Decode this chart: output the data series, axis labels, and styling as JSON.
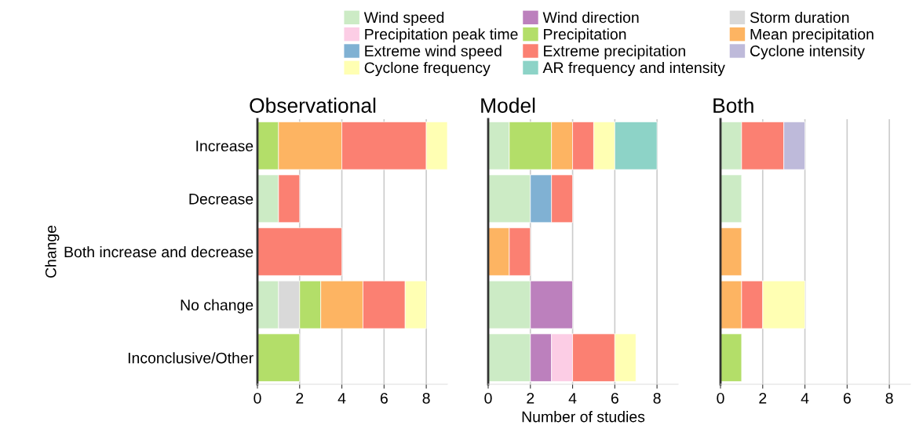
{
  "chart_data": [
    {
      "type": "bar",
      "title": "Observational",
      "ylabel": "Change",
      "orientation": "horizontal",
      "stacked": true,
      "grid": "x",
      "legend": "top",
      "xlim": [
        0,
        9
      ],
      "xticks": [
        0,
        2,
        4,
        6,
        8
      ],
      "categories": [
        "Increase",
        "Decrease",
        "Both increase and decrease",
        "No change",
        "Inconclusive/Other"
      ],
      "series": [
        {
          "name": "Wind speed",
          "color": "#ccebc5",
          "values": [
            null,
            1,
            null,
            1,
            null
          ]
        },
        {
          "name": "Wind direction",
          "color": "#bc80bd",
          "values": [
            null,
            null,
            null,
            null,
            null
          ]
        },
        {
          "name": "Storm duration",
          "color": "#d9d9d9",
          "values": [
            null,
            null,
            null,
            1,
            null
          ]
        },
        {
          "name": "Precipitation peak time",
          "color": "#fccde5",
          "values": [
            null,
            null,
            null,
            null,
            null
          ]
        },
        {
          "name": "Precipitation",
          "color": "#b3de69",
          "values": [
            1,
            null,
            null,
            1,
            2
          ]
        },
        {
          "name": "Mean precipitation",
          "color": "#fdb462",
          "values": [
            3,
            null,
            null,
            2,
            null
          ]
        },
        {
          "name": "Extreme wind speed",
          "color": "#80b1d3",
          "values": [
            null,
            null,
            null,
            null,
            null
          ]
        },
        {
          "name": "Extreme precipitation",
          "color": "#fb8072",
          "values": [
            4,
            1,
            4,
            2,
            null
          ]
        },
        {
          "name": "Cyclone intensity",
          "color": "#bebada",
          "values": [
            null,
            null,
            null,
            null,
            null
          ]
        },
        {
          "name": "Cyclone frequency",
          "color": "#ffffb3",
          "values": [
            1,
            null,
            null,
            1,
            null
          ]
        },
        {
          "name": "AR frequency and intensity",
          "color": "#8dd3c7",
          "values": [
            null,
            null,
            null,
            null,
            null
          ]
        }
      ]
    },
    {
      "type": "bar",
      "title": "Model",
      "xlabel": "Number of studies",
      "orientation": "horizontal",
      "stacked": true,
      "grid": "x",
      "tick_labels": "x",
      "xlim": [
        0,
        9
      ],
      "xticks": [
        0,
        2,
        4,
        6,
        8
      ],
      "categories": [
        null,
        null,
        null,
        null,
        null
      ],
      "series": [
        {
          "color": "#ccebc5",
          "values": [
            1,
            2,
            null,
            2,
            2
          ]
        },
        {
          "color": "#bc80bd",
          "values": [
            null,
            null,
            null,
            2,
            1
          ]
        },
        {
          "color": "#d9d9d9",
          "values": [
            null,
            null,
            null,
            null,
            null
          ]
        },
        {
          "color": "#fccde5",
          "values": [
            null,
            null,
            null,
            null,
            1
          ]
        },
        {
          "color": "#b3de69",
          "values": [
            2,
            null,
            null,
            null,
            null
          ]
        },
        {
          "color": "#fdb462",
          "values": [
            1,
            null,
            1,
            null,
            null
          ]
        },
        {
          "color": "#80b1d3",
          "values": [
            null,
            1,
            null,
            null,
            null
          ]
        },
        {
          "color": "#fb8072",
          "values": [
            1,
            1,
            1,
            null,
            2
          ]
        },
        {
          "color": "#bebada",
          "values": [
            null,
            null,
            null,
            null,
            null
          ]
        },
        {
          "color": "#ffffb3",
          "values": [
            1,
            null,
            null,
            null,
            1
          ]
        },
        {
          "color": "#8dd3c7",
          "values": [
            2,
            null,
            null,
            null,
            null
          ]
        }
      ]
    },
    {
      "type": "bar",
      "title": "Both",
      "orientation": "horizontal",
      "stacked": true,
      "grid": "x",
      "tick_labels": "x",
      "xlim": [
        0,
        9
      ],
      "xticks": [
        0,
        2,
        4,
        6,
        8
      ],
      "categories": [
        null,
        null,
        null,
        null,
        null
      ],
      "series": [
        {
          "color": "#ccebc5",
          "values": [
            1,
            1,
            null,
            null,
            null
          ]
        },
        {
          "color": "#bc80bd",
          "values": [
            null,
            null,
            null,
            null,
            null
          ]
        },
        {
          "color": "#d9d9d9",
          "values": [
            null,
            null,
            null,
            null,
            null
          ]
        },
        {
          "color": "#fccde5",
          "values": [
            null,
            null,
            null,
            null,
            null
          ]
        },
        {
          "color": "#b3de69",
          "values": [
            null,
            null,
            null,
            null,
            1
          ]
        },
        {
          "color": "#fdb462",
          "values": [
            null,
            null,
            1,
            1,
            null
          ]
        },
        {
          "color": "#80b1d3",
          "values": [
            null,
            null,
            null,
            null,
            null
          ]
        },
        {
          "color": "#fb8072",
          "values": [
            2,
            null,
            null,
            1,
            null
          ]
        },
        {
          "color": "#bebada",
          "values": [
            1,
            null,
            null,
            null,
            null
          ]
        },
        {
          "color": "#ffffb3",
          "values": [
            null,
            null,
            null,
            2,
            null
          ]
        },
        {
          "color": "#8dd3c7",
          "values": [
            null,
            null,
            null,
            null,
            null
          ]
        }
      ]
    }
  ]
}
